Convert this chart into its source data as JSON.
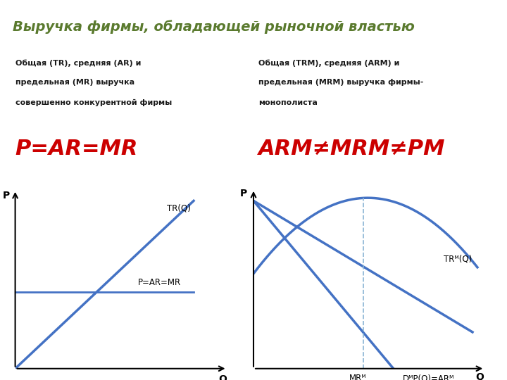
{
  "title": "Выручка фирмы, обладающей рыночной властью",
  "title_bg": "#d4e6b5",
  "bg_color": "#ffffff",
  "left_subtitle_line1": "Общая (TR), средняя (AR) и",
  "left_subtitle_line2": "предельная (MR) выручка",
  "left_subtitle_line3": "совершенно конкурентной фирмы",
  "right_subtitle_line1": "Общая (TRМ), средняя (ARМ) и",
  "right_subtitle_line2": "предельная (MRМ) выручка фирмы-",
  "right_subtitle_line3": "монополиста",
  "left_formula": "P=AR=MR",
  "right_formula": "ARМ≠MRМ≠PМ",
  "formula_color": "#cc0000",
  "line_color": "#4472c4",
  "axis_color": "#000000",
  "title_color": "#5a7a2e",
  "subtitle_color": "#1a1a1a",
  "label_color": "#000000"
}
